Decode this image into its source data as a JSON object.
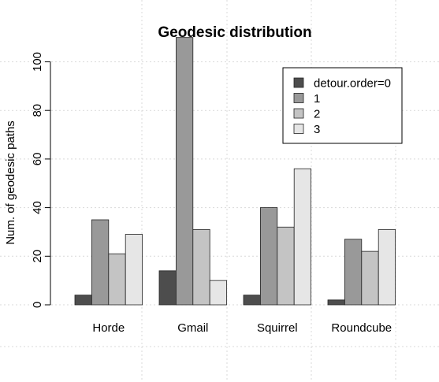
{
  "chart_data": {
    "type": "bar",
    "title": "Geodesic distribution",
    "xlabel": "",
    "ylabel": "Num. of geodesic paths",
    "categories": [
      "Horde",
      "Gmail",
      "Squirrel",
      "Roundcube"
    ],
    "series": [
      {
        "name": "detour.order=0",
        "color": "#4d4d4d",
        "values": [
          4,
          14,
          4,
          2
        ]
      },
      {
        "name": "1",
        "color": "#999999",
        "values": [
          35,
          110,
          40,
          27
        ]
      },
      {
        "name": "2",
        "color": "#c4c4c4",
        "values": [
          21,
          31,
          32,
          22
        ]
      },
      {
        "name": "3",
        "color": "#e6e6e6",
        "values": [
          29,
          10,
          56,
          31
        ]
      }
    ],
    "ylim": [
      0,
      110
    ],
    "yticks": [
      0,
      20,
      40,
      60,
      80,
      100
    ],
    "grid": true,
    "legend": "top-right"
  }
}
